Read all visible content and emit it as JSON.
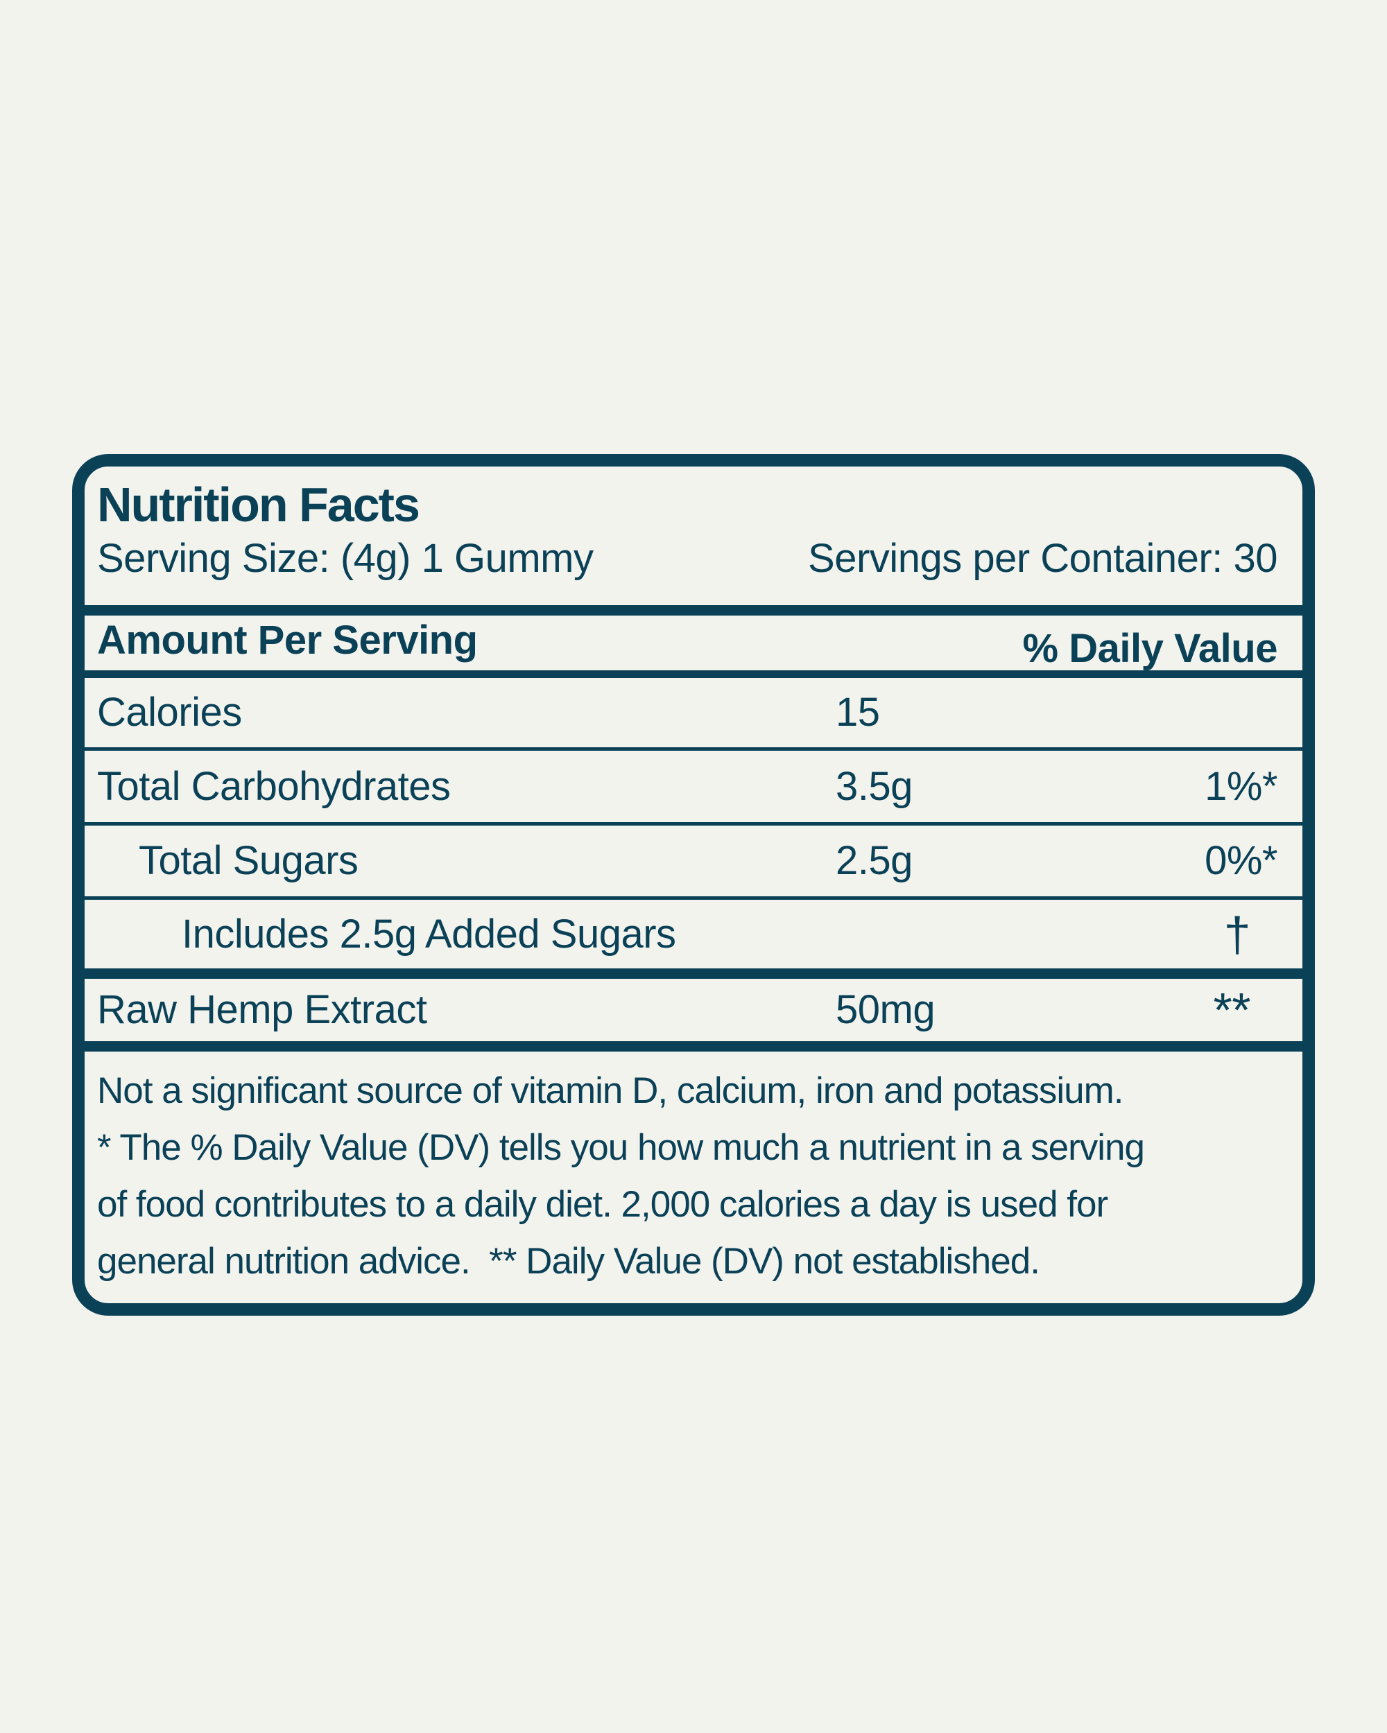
{
  "colors": {
    "navy": "#0b4157",
    "background": "#f3f3ee"
  },
  "label": {
    "title": "Nutrition Facts",
    "serving_size": "Serving Size: (4g) 1 Gummy",
    "servings_per_container": "Servings per Container: 30",
    "amount_per_serving": "Amount Per Serving",
    "daily_value_header": "% Daily Value",
    "rows": [
      {
        "name": "Calories",
        "amount": "15",
        "dv": ""
      },
      {
        "name": "Total Carbohydrates",
        "amount": "3.5g",
        "dv": "1%*"
      },
      {
        "name": "Total Sugars",
        "amount": "2.5g",
        "dv": "0%*"
      },
      {
        "name": "Includes 2.5g Added Sugars",
        "amount": "",
        "dv": "†"
      },
      {
        "name": "Raw Hemp Extract",
        "amount": "50mg",
        "dv": "**"
      }
    ],
    "footnote_lines": [
      "Not a significant source of vitamin D, calcium, iron and potassium.",
      "* The % Daily Value (DV) tells you how much a nutrient in a serving",
      "of food contributes to a daily diet. 2,000 calories a day is used for",
      "general nutrition advice.  ** Daily Value (DV) not established."
    ]
  }
}
